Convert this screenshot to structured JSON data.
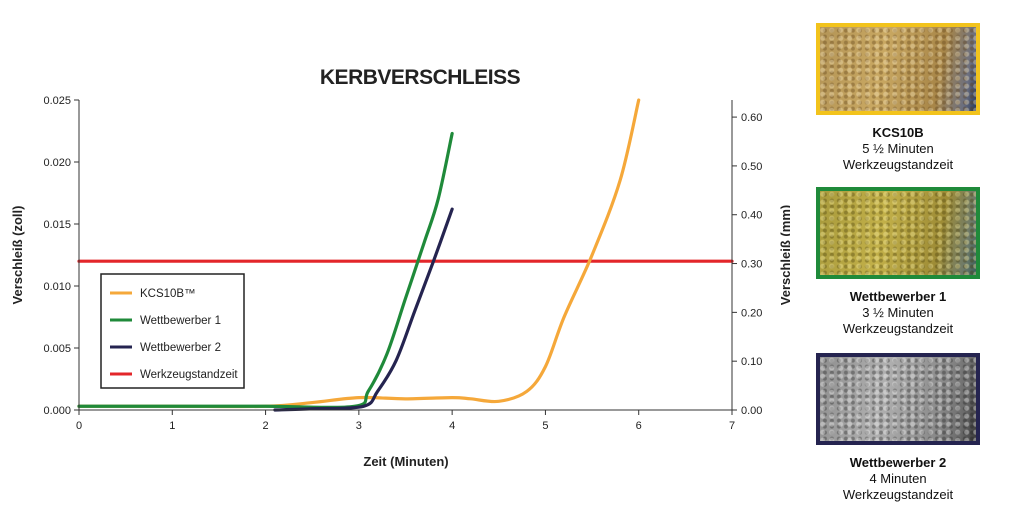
{
  "chart_data": {
    "type": "line",
    "title": "KERBVERSCHLEISS",
    "xlabel": "Zeit (Minuten)",
    "ylabel": "Verschleiß (zoll)",
    "y2label": "Verschleiß (mm)",
    "xlim": [
      0,
      7
    ],
    "ylim": [
      0,
      0.025
    ],
    "y2lim": [
      0,
      0.635
    ],
    "x_ticks": [
      "0",
      "1",
      "2",
      "3",
      "4",
      "5",
      "6",
      "7"
    ],
    "y_ticks": [
      "0.000",
      "0.005",
      "0.010",
      "0.015",
      "0.020",
      "0.025"
    ],
    "y2_ticks": [
      "0.00",
      "0.10",
      "0.20",
      "0.30",
      "0.40",
      "0.50",
      "0.60"
    ],
    "grid": false,
    "legend_position": "left-middle",
    "series": [
      {
        "name": "KCS10B™",
        "color": "#f5a83a",
        "points": [
          [
            0,
            0.0003
          ],
          [
            1,
            0.0003
          ],
          [
            2,
            0.0003
          ],
          [
            2.5,
            0.0006
          ],
          [
            3.0,
            0.001
          ],
          [
            3.5,
            0.0009
          ],
          [
            4.0,
            0.001
          ],
          [
            4.2,
            0.0009
          ],
          [
            4.5,
            0.0007
          ],
          [
            4.8,
            0.0015
          ],
          [
            5.0,
            0.0035
          ],
          [
            5.2,
            0.0075
          ],
          [
            5.5,
            0.0125
          ],
          [
            5.8,
            0.0185
          ],
          [
            6.0,
            0.025
          ]
        ]
      },
      {
        "name": "Wettbewerber 1",
        "color": "#1f8a3a",
        "points": [
          [
            0,
            0.0003
          ],
          [
            1,
            0.0003
          ],
          [
            2,
            0.0003
          ],
          [
            2.95,
            0.0003
          ],
          [
            3.1,
            0.0015
          ],
          [
            3.3,
            0.0045
          ],
          [
            3.5,
            0.009
          ],
          [
            3.7,
            0.0135
          ],
          [
            3.85,
            0.017
          ],
          [
            4.0,
            0.0223
          ]
        ]
      },
      {
        "name": "Wettbewerber 2",
        "color": "#252450",
        "points": [
          [
            2.1,
            0.0
          ],
          [
            2.5,
            0.0001
          ],
          [
            3.05,
            0.0003
          ],
          [
            3.2,
            0.0015
          ],
          [
            3.4,
            0.004
          ],
          [
            3.6,
            0.008
          ],
          [
            3.8,
            0.012
          ],
          [
            4.0,
            0.0162
          ]
        ]
      },
      {
        "name": "Werkzeugstandzeit",
        "color": "#e3262a",
        "points": [
          [
            0,
            0.012
          ],
          [
            7,
            0.012
          ]
        ]
      }
    ]
  },
  "panels": [
    {
      "name": "KCS10B",
      "line1": "5 ½ Minuten",
      "line2": "Werkzeugstandzeit",
      "border_color": "#f2c31c"
    },
    {
      "name": "Wettbewerber 1",
      "line1": "3 ½ Minuten",
      "line2": "Werkzeugstandzeit",
      "border_color": "#1f8a3a"
    },
    {
      "name": "Wettbewerber 2",
      "line1": "4 Minuten",
      "line2": "Werkzeugstandzeit",
      "border_color": "#252450"
    }
  ]
}
